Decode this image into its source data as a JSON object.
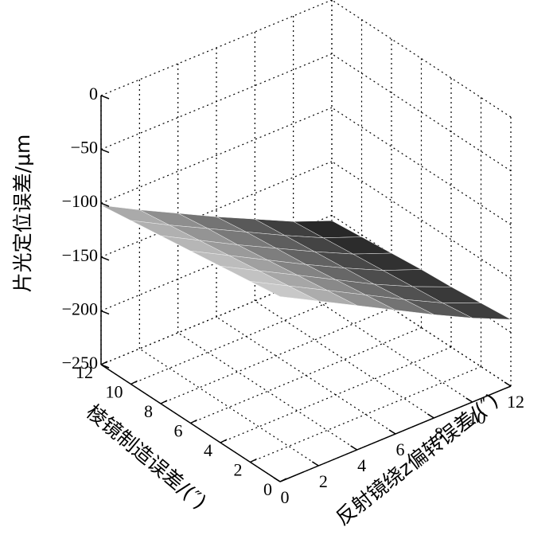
{
  "chart_data": {
    "type": "surface",
    "zlabel": "片光定位误差/μm",
    "ylabel": "棱镜制造误差/(″)",
    "xlabel": "反射镜绕z偏转误差/(″)",
    "x_ticks": [
      "0",
      "2",
      "4",
      "6",
      "8",
      "10",
      "12"
    ],
    "y_ticks": [
      "0",
      "2",
      "4",
      "6",
      "8",
      "10",
      "12"
    ],
    "z_ticks": [
      "0",
      "−50",
      "−100",
      "−150",
      "−200",
      "−250"
    ],
    "xlim": [
      0,
      12
    ],
    "ylim": [
      0,
      12
    ],
    "zlim": [
      -250,
      0
    ],
    "grid": true,
    "surface": {
      "x": [
        0,
        2,
        4,
        6,
        8,
        10,
        12
      ],
      "y": [
        0,
        2,
        4,
        6,
        8,
        10,
        12
      ],
      "z_note": "",
      "z": [
        [
          -78,
          -97,
          -116,
          -135,
          -154,
          -172,
          -188
        ],
        [
          -82,
          -101,
          -120,
          -139,
          -158,
          -176,
          -191
        ],
        [
          -86,
          -105,
          -124,
          -143,
          -162,
          -179,
          -194
        ],
        [
          -90,
          -109,
          -128,
          -147,
          -165,
          -182,
          -196
        ],
        [
          -94,
          -113,
          -132,
          -150,
          -168,
          -185,
          -199
        ],
        [
          -98,
          -117,
          -135,
          -153,
          -171,
          -188,
          -202
        ],
        [
          -102,
          -121,
          -139,
          -157,
          -174,
          -191,
          -205
        ]
      ]
    }
  }
}
